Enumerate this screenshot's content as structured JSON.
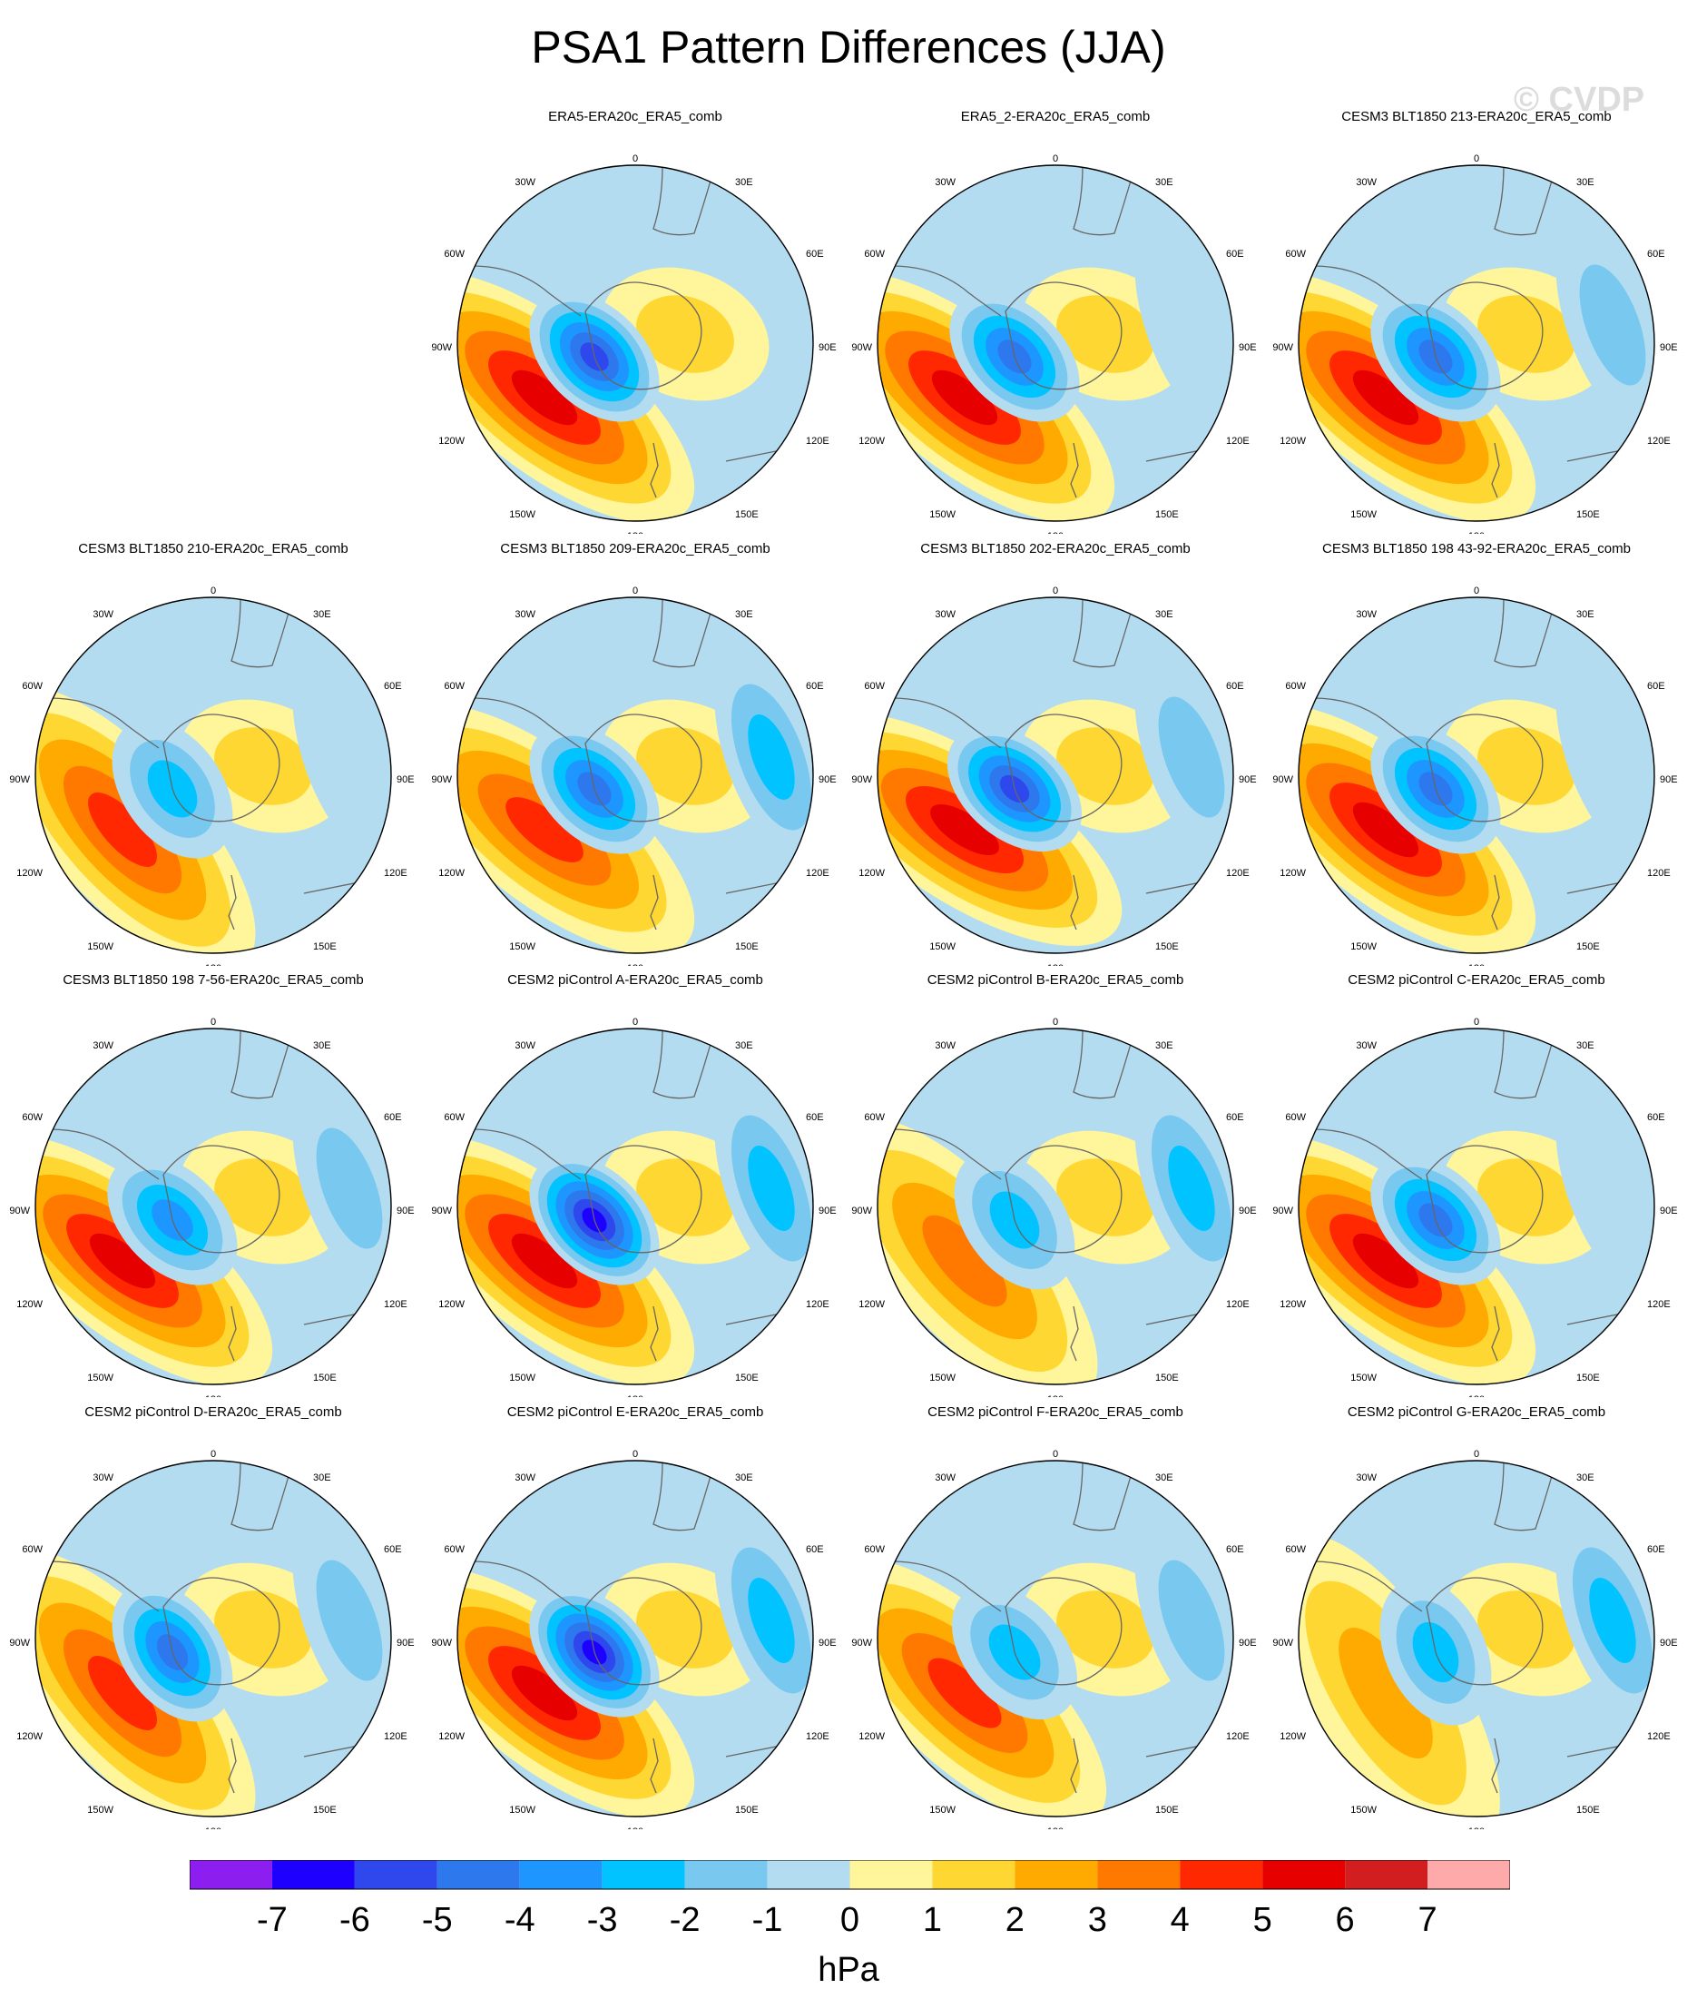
{
  "title": "PSA1 Pattern Differences (JJA)",
  "watermark": "© CVDP",
  "lon_labels": {
    "top": "0",
    "tr": "30E",
    "tl": "30W",
    "r1": "60E",
    "l1": "60W",
    "r2": "90E",
    "l2": "90W",
    "r3": "120E",
    "l3": "120W",
    "br": "150E",
    "bl": "150W",
    "bottom": "180"
  },
  "panels": [
    {
      "title": "ERA5-ERA20c_ERA5_comb",
      "row": 0,
      "col": 1,
      "neg": -6,
      "pos": 6,
      "tilt": 0,
      "extra": 0
    },
    {
      "title": "ERA5_2-ERA20c_ERA5_comb",
      "row": 0,
      "col": 2,
      "neg": -5,
      "pos": 6,
      "tilt": 0,
      "extra": -1
    },
    {
      "title": "CESM3 BLT1850 213-ERA20c_ERA5_comb",
      "row": 0,
      "col": 3,
      "neg": -5,
      "pos": 6,
      "tilt": 0,
      "extra": -2
    },
    {
      "title": "CESM3 BLT1850 210-ERA20c_ERA5_comb",
      "row": 1,
      "col": 0,
      "neg": -3,
      "pos": 5,
      "tilt": 10,
      "extra": -1
    },
    {
      "title": "CESM3 BLT1850 209-ERA20c_ERA5_comb",
      "row": 1,
      "col": 1,
      "neg": -5,
      "pos": 5,
      "tilt": 0,
      "extra": -3
    },
    {
      "title": "CESM3 BLT1850 202-ERA20c_ERA5_comb",
      "row": 1,
      "col": 2,
      "neg": -6,
      "pos": 6,
      "tilt": -5,
      "extra": -2
    },
    {
      "title": "CESM3 BLT1850 198 43-92-ERA20c_ERA5_comb",
      "row": 1,
      "col": 3,
      "neg": -5,
      "pos": 6,
      "tilt": 0,
      "extra": -1
    },
    {
      "title": "CESM3 BLT1850 198 7-56-ERA20c_ERA5_comb",
      "row": 2,
      "col": 0,
      "neg": -4,
      "pos": 6,
      "tilt": 0,
      "extra": -2
    },
    {
      "title": "CESM2 piControl A-ERA20c_ERA5_comb",
      "row": 2,
      "col": 1,
      "neg": -7,
      "pos": 6,
      "tilt": 0,
      "extra": -3
    },
    {
      "title": "CESM2 piControl B-ERA20c_ERA5_comb",
      "row": 2,
      "col": 2,
      "neg": -3,
      "pos": 4,
      "tilt": 10,
      "extra": -3
    },
    {
      "title": "CESM2 piControl C-ERA20c_ERA5_comb",
      "row": 2,
      "col": 3,
      "neg": -5,
      "pos": 6,
      "tilt": 0,
      "extra": -1
    },
    {
      "title": "CESM2 piControl D-ERA20c_ERA5_comb",
      "row": 3,
      "col": 0,
      "neg": -5,
      "pos": 5,
      "tilt": 10,
      "extra": -2
    },
    {
      "title": "CESM2 piControl E-ERA20c_ERA5_comb",
      "row": 3,
      "col": 1,
      "neg": -7,
      "pos": 6,
      "tilt": 0,
      "extra": -3
    },
    {
      "title": "CESM2 piControl F-ERA20c_ERA5_comb",
      "row": 3,
      "col": 2,
      "neg": -3,
      "pos": 5,
      "tilt": 5,
      "extra": -2
    },
    {
      "title": "CESM2 piControl G-ERA20c_ERA5_comb",
      "row": 3,
      "col": 3,
      "neg": -3,
      "pos": 3,
      "tilt": 20,
      "extra": -3
    }
  ],
  "colorbar": {
    "unit": "hPa",
    "tick_labels": [
      "-7",
      "-6",
      "-5",
      "-4",
      "-3",
      "-2",
      "-1",
      "0",
      "1",
      "2",
      "3",
      "4",
      "5",
      "6",
      "7"
    ],
    "colors": [
      "#8c1ff0",
      "#1e00ff",
      "#2e48ee",
      "#2e78ee",
      "#1e96ff",
      "#00c3ff",
      "#78c8f0",
      "#b4dcf0",
      "#fff59b",
      "#ffd732",
      "#ffaa00",
      "#ff7800",
      "#ff2800",
      "#e60000",
      "#d21e1e",
      "#ffaaaa"
    ]
  }
}
